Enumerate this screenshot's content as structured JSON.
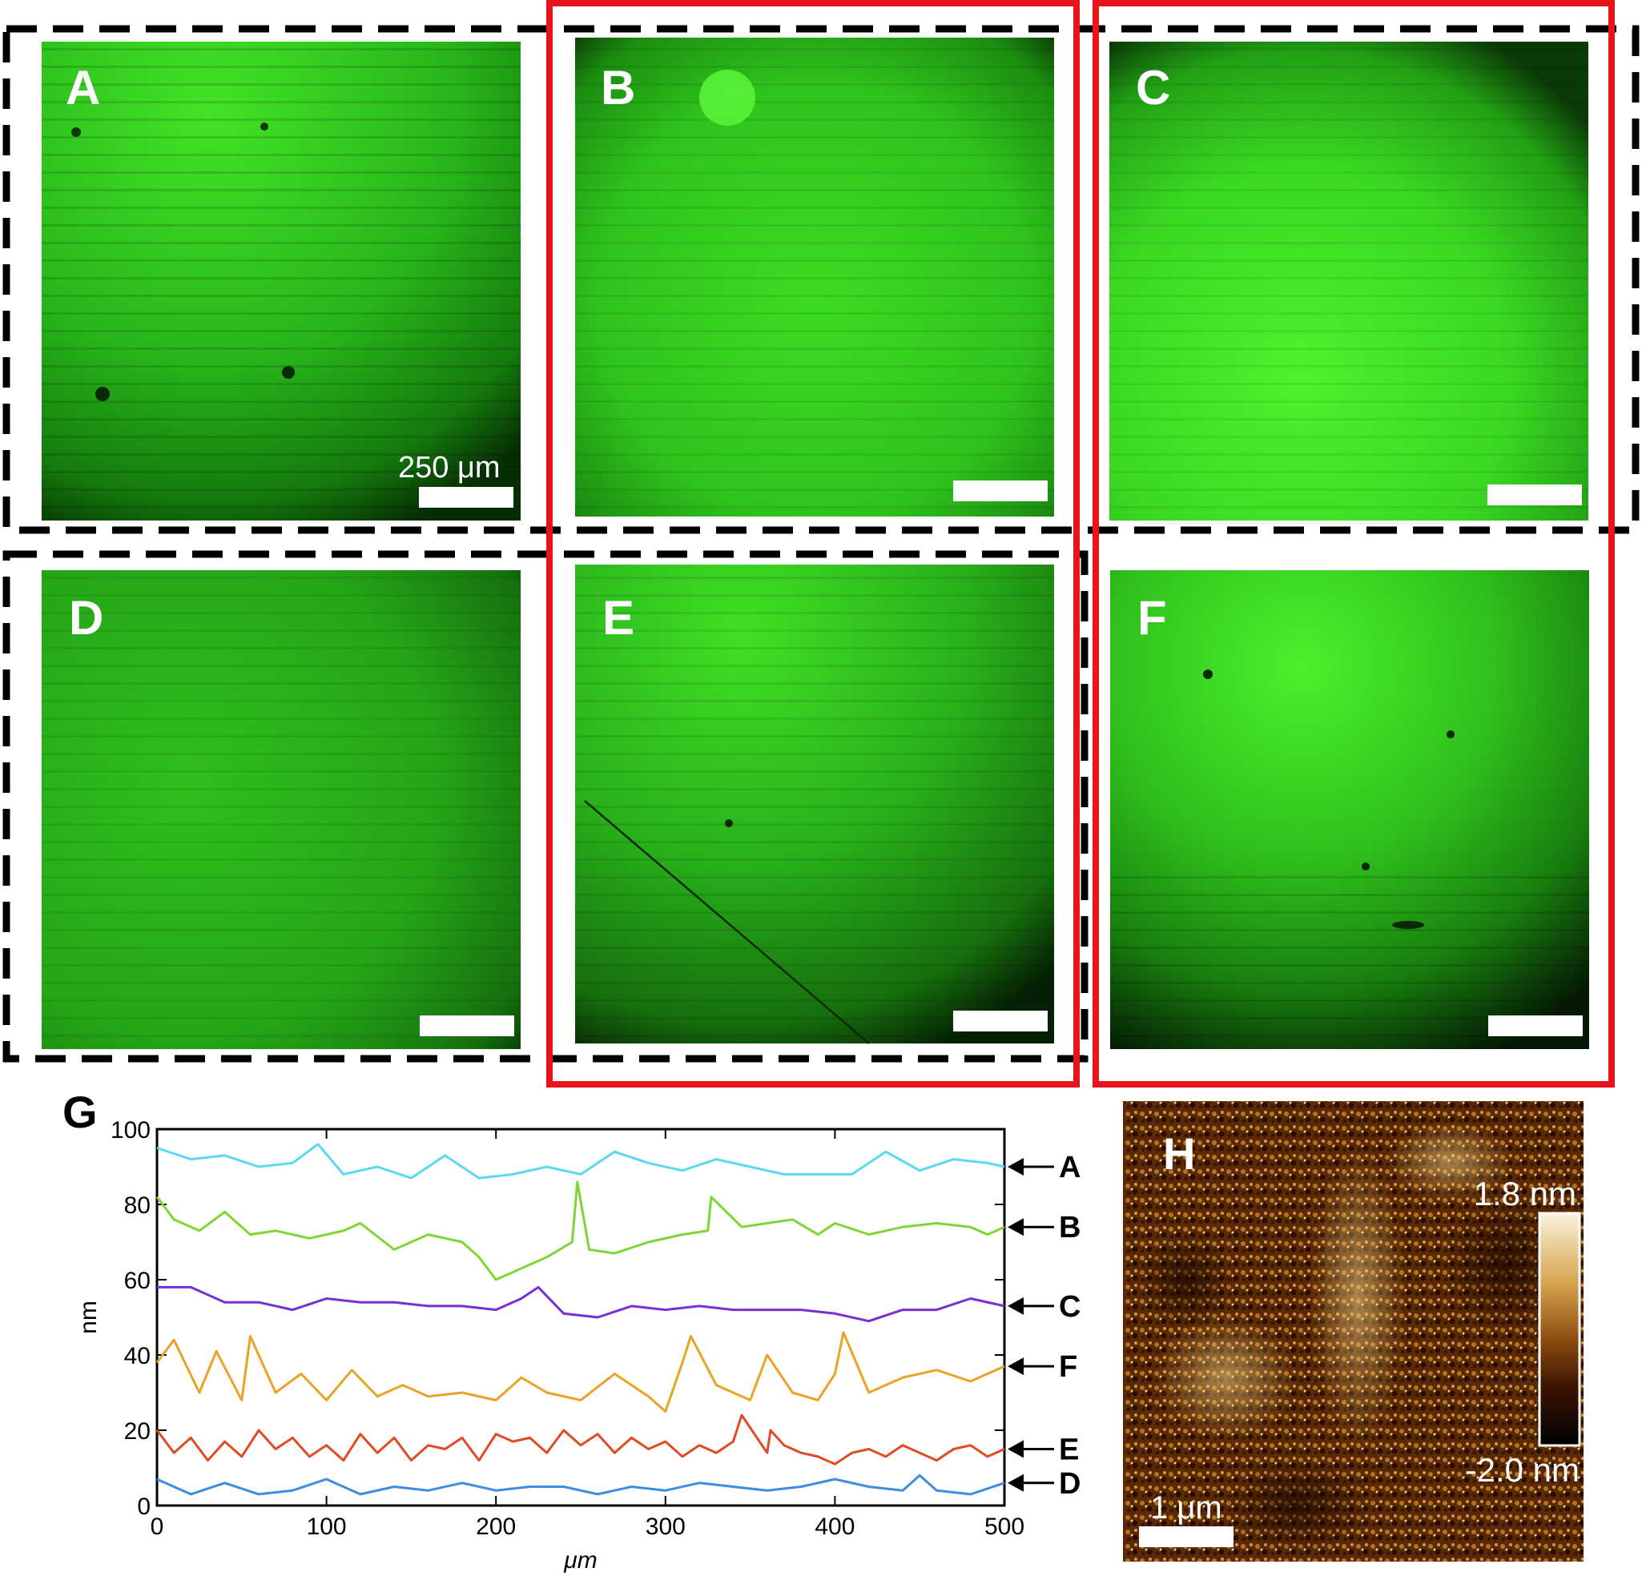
{
  "panels": [
    {
      "id": "A",
      "letter": "A",
      "scale_text": "250 μm"
    },
    {
      "id": "B",
      "letter": "B"
    },
    {
      "id": "C",
      "letter": "C"
    },
    {
      "id": "D",
      "letter": "D"
    },
    {
      "id": "E",
      "letter": "E"
    },
    {
      "id": "F",
      "letter": "F"
    }
  ],
  "afm": {
    "letter": "H",
    "scale_text": "1 μm",
    "colorbar_max": "1.8 nm",
    "colorbar_min": "-2.0 nm"
  },
  "colors": {
    "fluorescence": "#33d81e",
    "dashed_frame": "#000000",
    "red_frame": "#e8141c",
    "afm_dark": "#2a0c00",
    "afm_light": "#f2cf84"
  },
  "chart_data": {
    "type": "line",
    "panel_letter": "G",
    "xlabel": "μm",
    "ylabel": "nm",
    "xlim": [
      0,
      500
    ],
    "ylim": [
      0,
      100
    ],
    "xticks": [
      0,
      100,
      200,
      300,
      400,
      500
    ],
    "yticks": [
      0,
      20,
      40,
      60,
      80,
      100
    ],
    "grid": false,
    "series": [
      {
        "name": "A",
        "color": "#5cd8f0",
        "x": [
          0,
          20,
          40,
          60,
          80,
          95,
          110,
          130,
          150,
          170,
          190,
          210,
          230,
          250,
          270,
          290,
          310,
          330,
          350,
          370,
          390,
          410,
          430,
          450,
          470,
          490,
          500
        ],
        "y": [
          95,
          92,
          93,
          90,
          91,
          96,
          88,
          90,
          87,
          93,
          87,
          88,
          90,
          88,
          94,
          91,
          89,
          92,
          90,
          88,
          88,
          88,
          94,
          89,
          92,
          91,
          90
        ]
      },
      {
        "name": "B",
        "color": "#7fd534",
        "x": [
          0,
          10,
          25,
          40,
          55,
          70,
          90,
          110,
          120,
          140,
          160,
          180,
          190,
          200,
          215,
          230,
          245,
          248,
          255,
          270,
          290,
          310,
          325,
          327,
          345,
          360,
          375,
          390,
          400,
          420,
          440,
          460,
          480,
          490,
          500
        ],
        "y": [
          82,
          76,
          73,
          78,
          72,
          73,
          71,
          73,
          75,
          68,
          72,
          70,
          66,
          60,
          63,
          66,
          70,
          86,
          68,
          67,
          70,
          72,
          73,
          82,
          74,
          75,
          76,
          72,
          75,
          72,
          74,
          75,
          74,
          72,
          74
        ]
      },
      {
        "name": "C",
        "color": "#7a2fd4",
        "x": [
          0,
          20,
          40,
          60,
          80,
          100,
          120,
          140,
          160,
          180,
          200,
          215,
          225,
          240,
          260,
          280,
          300,
          320,
          340,
          360,
          380,
          400,
          420,
          440,
          460,
          480,
          500
        ],
        "y": [
          58,
          58,
          54,
          54,
          52,
          55,
          54,
          54,
          53,
          53,
          52,
          55,
          58,
          51,
          50,
          53,
          52,
          53,
          52,
          52,
          52,
          51,
          49,
          52,
          52,
          55,
          53
        ]
      },
      {
        "name": "F",
        "color": "#eba226",
        "x": [
          0,
          10,
          25,
          35,
          50,
          55,
          70,
          85,
          100,
          115,
          130,
          145,
          160,
          180,
          200,
          215,
          230,
          250,
          270,
          290,
          300,
          310,
          315,
          330,
          350,
          360,
          375,
          390,
          400,
          405,
          420,
          440,
          460,
          480,
          500
        ],
        "y": [
          38,
          44,
          30,
          41,
          28,
          45,
          30,
          35,
          28,
          36,
          29,
          32,
          29,
          30,
          28,
          34,
          30,
          28,
          35,
          29,
          25,
          38,
          45,
          32,
          28,
          40,
          30,
          28,
          35,
          46,
          30,
          34,
          36,
          33,
          37
        ]
      },
      {
        "name": "E",
        "color": "#df4b22",
        "x": [
          0,
          10,
          20,
          30,
          40,
          50,
          60,
          70,
          80,
          90,
          100,
          110,
          120,
          130,
          140,
          150,
          160,
          170,
          180,
          190,
          200,
          210,
          220,
          230,
          240,
          250,
          260,
          270,
          280,
          290,
          300,
          310,
          320,
          330,
          340,
          345,
          360,
          362,
          370,
          380,
          390,
          400,
          410,
          420,
          430,
          440,
          450,
          460,
          470,
          480,
          490,
          500
        ],
        "y": [
          20,
          14,
          18,
          12,
          17,
          13,
          20,
          15,
          18,
          13,
          16,
          12,
          19,
          14,
          18,
          12,
          16,
          15,
          18,
          12,
          19,
          17,
          18,
          14,
          20,
          16,
          19,
          14,
          18,
          15,
          17,
          13,
          16,
          14,
          17,
          24,
          14,
          20,
          16,
          14,
          13,
          11,
          14,
          15,
          13,
          16,
          14,
          12,
          15,
          16,
          13,
          15
        ]
      },
      {
        "name": "D",
        "color": "#3d8ee0",
        "x": [
          0,
          20,
          40,
          60,
          80,
          100,
          120,
          140,
          160,
          180,
          200,
          220,
          240,
          260,
          280,
          300,
          320,
          340,
          360,
          380,
          400,
          420,
          440,
          450,
          460,
          480,
          500
        ],
        "y": [
          7,
          3,
          6,
          3,
          4,
          7,
          3,
          5,
          4,
          6,
          4,
          5,
          5,
          3,
          5,
          4,
          6,
          5,
          4,
          5,
          7,
          5,
          4,
          8,
          4,
          3,
          6
        ]
      }
    ]
  }
}
